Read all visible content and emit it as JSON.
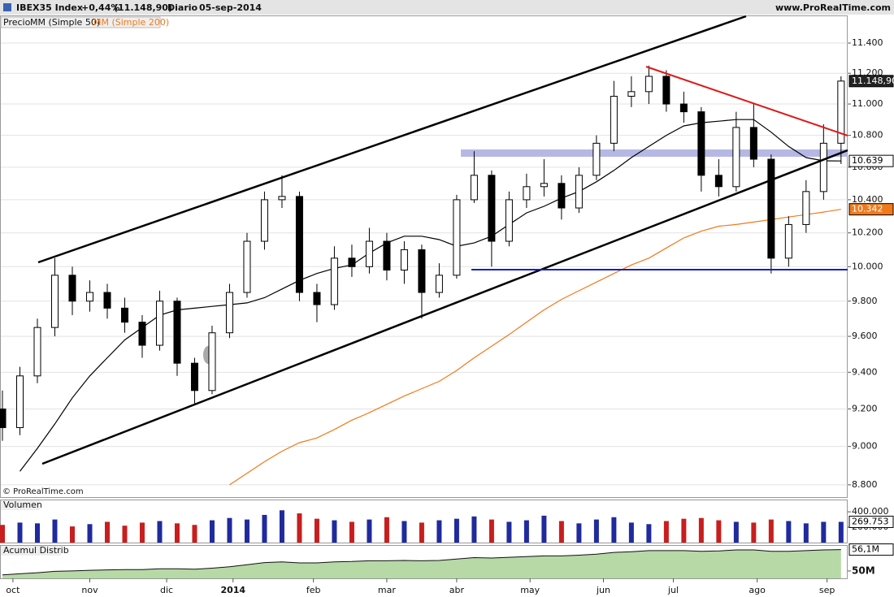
{
  "header": {
    "symbol": "IBEX35 Index",
    "change": "+0,44%",
    "last": "(11.148,90)",
    "period": "Diario",
    "date": "05-sep-2014",
    "site": "www.ProRealTime.com"
  },
  "chart_data": [
    {
      "type": "candlestick",
      "watermark": "© ProRealTime.com",
      "log_scale": true,
      "grid": true,
      "x": [
        0,
        5,
        10,
        15,
        20,
        25,
        30,
        35,
        40,
        45,
        50,
        55,
        60,
        65,
        70,
        75,
        80,
        85,
        90,
        95,
        100,
        105,
        110,
        115,
        120,
        125,
        130,
        135,
        140,
        145,
        150,
        155,
        160,
        165,
        170,
        175,
        180,
        185,
        190,
        195,
        200,
        205,
        210,
        215,
        220,
        225,
        230,
        235,
        240
      ],
      "xlim": [
        -0.7,
        241.9
      ],
      "xticks": [
        {
          "value": 3,
          "label": "oct"
        },
        {
          "value": 25,
          "label": "nov"
        },
        {
          "value": 47,
          "label": "dic"
        },
        {
          "value": 66,
          "label": "2014"
        },
        {
          "value": 89,
          "label": "feb"
        },
        {
          "value": 110,
          "label": "mar"
        },
        {
          "value": 130,
          "label": "abr"
        },
        {
          "value": 151,
          "label": "may"
        },
        {
          "value": 172,
          "label": "jun"
        },
        {
          "value": 192,
          "label": "jul"
        },
        {
          "value": 216,
          "label": "ago"
        },
        {
          "value": 236,
          "label": "sep"
        }
      ],
      "ylim": [
        8737,
        11586
      ],
      "yticks": [
        {
          "value": 8800,
          "label": "8.800"
        },
        {
          "value": 9000,
          "label": "9.000"
        },
        {
          "value": 9200,
          "label": "9.200"
        },
        {
          "value": 9400,
          "label": "9.400"
        },
        {
          "value": 9600,
          "label": "9.600"
        },
        {
          "value": 9800,
          "label": "9.800"
        },
        {
          "value": 10000,
          "label": "10.000"
        },
        {
          "value": 10200,
          "label": "10.200"
        },
        {
          "value": 10400,
          "label": "10.400"
        },
        {
          "value": 10600,
          "label": "10.600"
        },
        {
          "value": 10800,
          "label": "10.800"
        },
        {
          "value": 11000,
          "label": "11.000"
        },
        {
          "value": 11200,
          "label": "11.200"
        },
        {
          "value": 11400,
          "label": "11.400"
        }
      ],
      "candles": {
        "name": "Precio",
        "up_color": "#ffffff",
        "down_color": "#000000",
        "label_color": "#222222",
        "open": [
          9200,
          9100,
          9380,
          9650,
          9950,
          9800,
          9850,
          9760,
          9680,
          9550,
          9800,
          9450,
          9300,
          9620,
          9850,
          10150,
          10400,
          10420,
          9850,
          9780,
          10050,
          10000,
          10150,
          9980,
          10100,
          9850,
          9950,
          10400,
          10550,
          10150,
          10400,
          10480,
          10500,
          10350,
          10550,
          10750,
          11050,
          11080,
          11180,
          11000,
          10950,
          10550,
          10480,
          10850,
          10650,
          10050,
          10250,
          10450,
          10750
        ],
        "high": [
          9300,
          9430,
          9700,
          10050,
          10000,
          9920,
          9900,
          9820,
          9720,
          9860,
          9820,
          9480,
          9660,
          9900,
          10200,
          10450,
          10550,
          10450,
          9900,
          10120,
          10130,
          10230,
          10200,
          10150,
          10130,
          10020,
          10430,
          10700,
          10580,
          10450,
          10560,
          10650,
          10550,
          10600,
          10800,
          11150,
          11180,
          11250,
          11220,
          11080,
          10980,
          10650,
          10950,
          11000,
          10680,
          10300,
          10520,
          10870,
          11180
        ],
        "low": [
          9030,
          9060,
          9340,
          9600,
          9720,
          9740,
          9700,
          9620,
          9480,
          9520,
          9380,
          9230,
          9280,
          9590,
          9820,
          10100,
          10350,
          9800,
          9680,
          9750,
          9940,
          9960,
          9920,
          9900,
          9700,
          9820,
          9930,
          10380,
          10000,
          10120,
          10350,
          10420,
          10280,
          10320,
          10520,
          10700,
          10980,
          11000,
          10950,
          10880,
          10450,
          10420,
          10450,
          10600,
          9960,
          10000,
          10200,
          10400,
          10620
        ],
        "close": [
          9100,
          9380,
          9650,
          9950,
          9800,
          9850,
          9760,
          9680,
          9550,
          9800,
          9450,
          9300,
          9620,
          9850,
          10150,
          10400,
          10420,
          9850,
          9780,
          10050,
          10000,
          10150,
          9980,
          10100,
          9850,
          9950,
          10400,
          10550,
          10150,
          10400,
          10480,
          10500,
          10350,
          10550,
          10750,
          11050,
          11080,
          11180,
          11000,
          10950,
          10550,
          10480,
          10850,
          10650,
          10050,
          10250,
          10450,
          10750,
          11148.9
        ],
        "value_labels": [
          null,
          null,
          null,
          null,
          null,
          null,
          null,
          null,
          null,
          null,
          null,
          null,
          null,
          null,
          null,
          null,
          null,
          null,
          null,
          null,
          null,
          null,
          null,
          null,
          null,
          null,
          null,
          null,
          null,
          null,
          null,
          null,
          null,
          null,
          null,
          null,
          null,
          null,
          null,
          null,
          null,
          null,
          null,
          null,
          null,
          null,
          null,
          null,
          "11.148,90"
        ]
      },
      "series": [
        {
          "type": "line",
          "name": "MM (Simple 50)",
          "color": "#000000",
          "label_color": "#ffffff",
          "values": [
            null,
            8870,
            8990,
            9120,
            9260,
            9380,
            9480,
            9580,
            9650,
            9720,
            9750,
            9760,
            9770,
            9780,
            9790,
            9820,
            9870,
            9920,
            9960,
            9990,
            10010,
            10080,
            10140,
            10180,
            10180,
            10160,
            10120,
            10140,
            10180,
            10250,
            10320,
            10360,
            10410,
            10450,
            10510,
            10580,
            10660,
            10730,
            10800,
            10860,
            10880,
            10890,
            10900,
            10900,
            10820,
            10730,
            10660,
            10640,
            10639
          ],
          "value_labels": [
            null,
            null,
            null,
            null,
            null,
            null,
            null,
            null,
            null,
            null,
            null,
            null,
            null,
            null,
            null,
            null,
            null,
            null,
            null,
            null,
            null,
            null,
            null,
            null,
            null,
            null,
            null,
            null,
            null,
            null,
            null,
            null,
            null,
            null,
            null,
            null,
            null,
            null,
            null,
            null,
            null,
            null,
            null,
            null,
            null,
            null,
            null,
            null,
            "10.639"
          ]
        },
        {
          "type": "line",
          "name": "MM (Simple 200)",
          "color": "#f07a1a",
          "label_color": "#f07a1a",
          "values": [
            null,
            null,
            null,
            null,
            null,
            null,
            null,
            null,
            null,
            null,
            null,
            null,
            null,
            8800,
            8860,
            8920,
            8975,
            9020,
            9045,
            9090,
            9140,
            9180,
            9225,
            9270,
            9310,
            9350,
            9410,
            9480,
            9545,
            9610,
            9680,
            9750,
            9810,
            9860,
            9910,
            9960,
            10010,
            10050,
            10110,
            10170,
            10210,
            10240,
            10250,
            10265,
            10280,
            10295,
            10310,
            10325,
            10342
          ],
          "value_labels": [
            null,
            null,
            null,
            null,
            null,
            null,
            null,
            null,
            null,
            null,
            null,
            null,
            null,
            null,
            null,
            null,
            null,
            null,
            null,
            null,
            null,
            null,
            null,
            null,
            null,
            null,
            null,
            null,
            null,
            null,
            null,
            null,
            null,
            null,
            null,
            null,
            null,
            null,
            null,
            null,
            null,
            null,
            null,
            null,
            null,
            null,
            null,
            null,
            "10.342"
          ]
        }
      ]
    },
    {
      "type": "bar",
      "title": "Volumen",
      "up_color": "#1f2a9e",
      "down_color": "#c81e1e",
      "label_color": "#ffffff",
      "ylim": [
        0,
        560000
      ],
      "yticks": [
        {
          "value": 200000,
          "label": "200.000"
        },
        {
          "value": 400000,
          "label": "400.000"
        }
      ],
      "values": [
        230000,
        260000,
        250000,
        300000,
        210000,
        240000,
        270000,
        220000,
        260000,
        280000,
        250000,
        230000,
        290000,
        320000,
        300000,
        360000,
        420000,
        380000,
        310000,
        290000,
        270000,
        300000,
        330000,
        280000,
        260000,
        290000,
        310000,
        340000,
        300000,
        270000,
        290000,
        350000,
        280000,
        250000,
        300000,
        330000,
        260000,
        240000,
        280000,
        310000,
        320000,
        290000,
        270000,
        260000,
        300000,
        280000,
        250000,
        270000,
        269753
      ],
      "value_labels": [
        null,
        null,
        null,
        null,
        null,
        null,
        null,
        null,
        null,
        null,
        null,
        null,
        null,
        null,
        null,
        null,
        null,
        null,
        null,
        null,
        null,
        null,
        null,
        null,
        null,
        null,
        null,
        null,
        null,
        null,
        null,
        null,
        null,
        null,
        null,
        null,
        null,
        null,
        null,
        null,
        null,
        null,
        null,
        null,
        null,
        null,
        null,
        null,
        "269.753"
      ]
    },
    {
      "type": "area",
      "title": "Acumul Distrib",
      "color": "#b6d9a6",
      "line_color": "#111111",
      "label_color": "#ffffff",
      "ylim": [
        47.9,
        57.4
      ],
      "yticks": [
        {
          "value": 50,
          "label": "50M"
        }
      ],
      "values": [
        48.9,
        49.2,
        49.5,
        49.9,
        50.0,
        50.2,
        50.3,
        50.4,
        50.4,
        50.6,
        50.6,
        50.5,
        50.8,
        51.2,
        51.8,
        52.4,
        52.6,
        52.3,
        52.3,
        52.6,
        52.7,
        52.9,
        52.9,
        53.0,
        52.9,
        53.0,
        53.4,
        53.8,
        53.7,
        53.9,
        54.1,
        54.3,
        54.3,
        54.5,
        54.8,
        55.3,
        55.5,
        55.8,
        55.8,
        55.8,
        55.6,
        55.7,
        56.0,
        56.0,
        55.6,
        55.6,
        55.8,
        56.0,
        56.1
      ],
      "value_labels": [
        null,
        null,
        null,
        null,
        null,
        null,
        null,
        null,
        null,
        null,
        null,
        null,
        null,
        null,
        null,
        null,
        null,
        null,
        null,
        null,
        null,
        null,
        null,
        null,
        null,
        null,
        null,
        null,
        null,
        null,
        null,
        null,
        null,
        null,
        null,
        null,
        null,
        null,
        null,
        null,
        null,
        null,
        null,
        null,
        null,
        null,
        null,
        null,
        "56,1M"
      ]
    }
  ]
}
